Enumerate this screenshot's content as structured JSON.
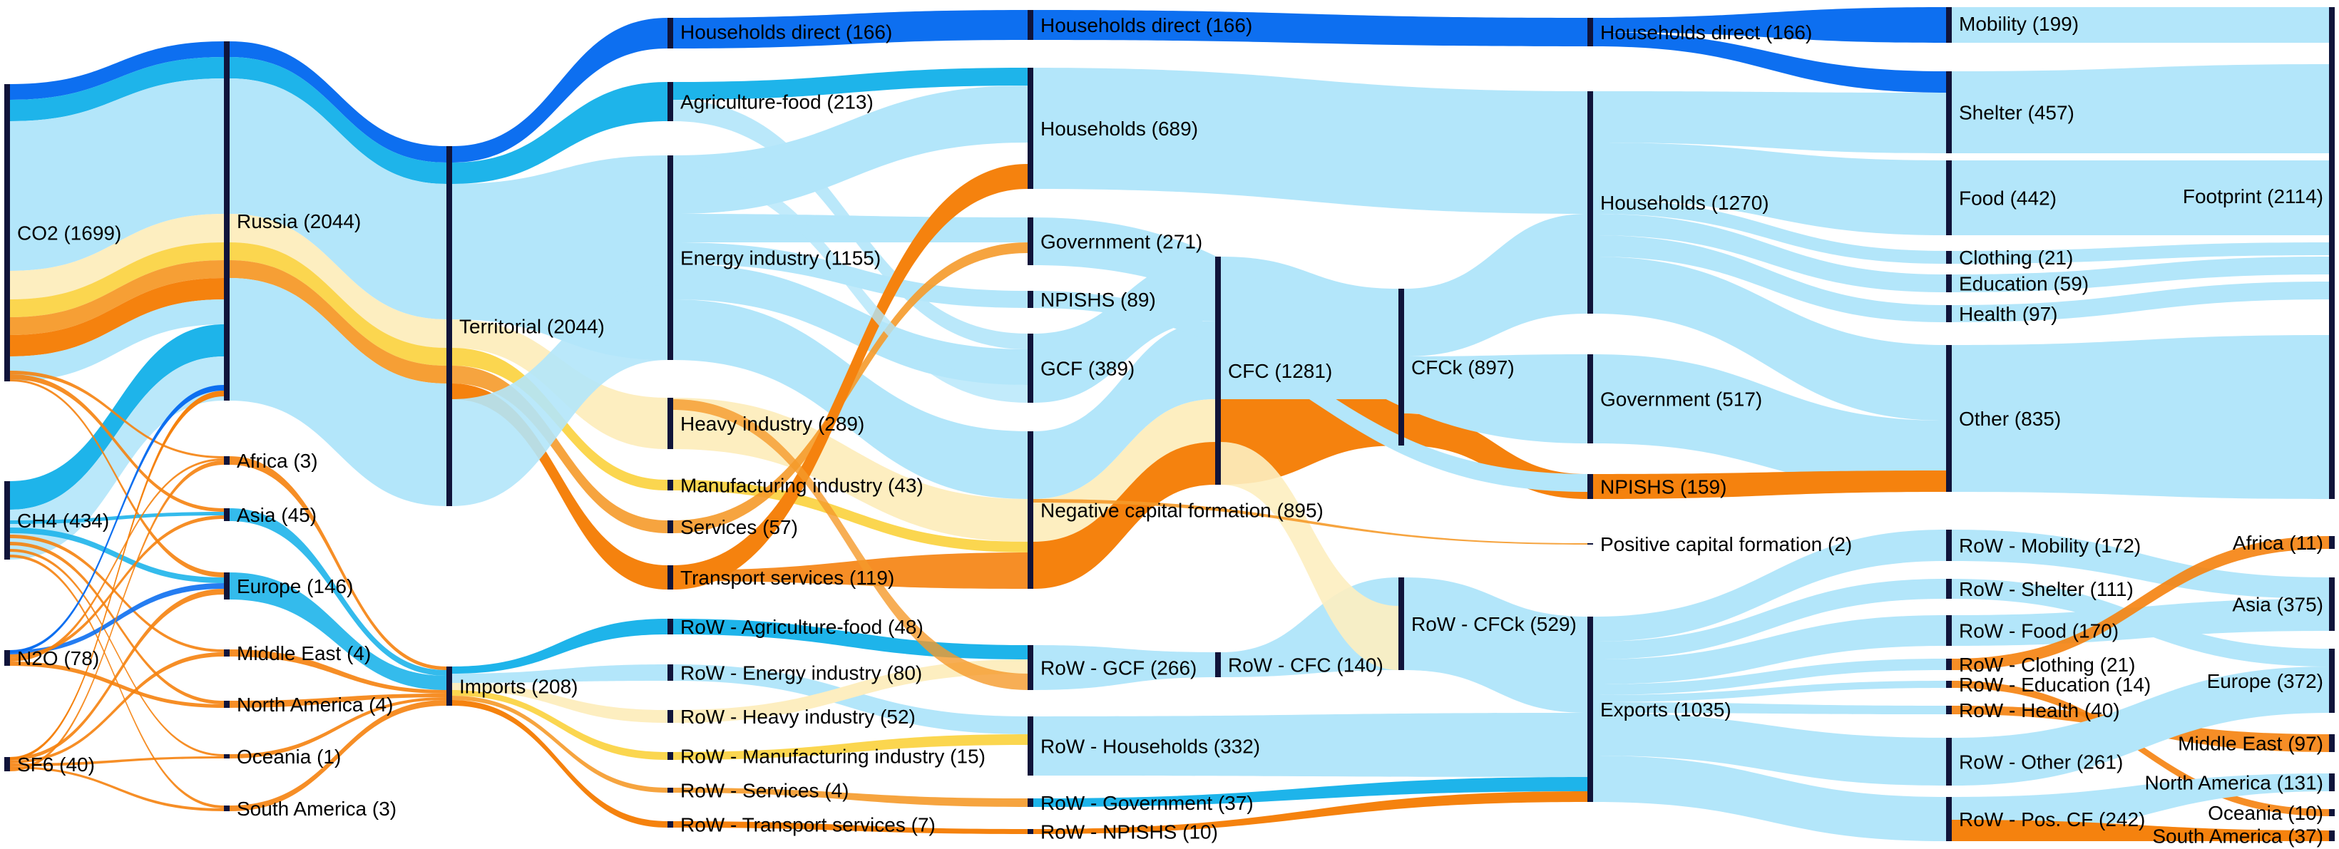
{
  "chart_data": {
    "type": "sankey",
    "colors": {
      "node_bar": "#10143a",
      "flow_co2": "#b3e6fa",
      "flow_ch4": "#1eb4ea",
      "flow_n2o": "#0d6ff0",
      "flow_sf6": "#f5820e",
      "flow_pale": "#fdeec0",
      "flow_yellow": "#fbd23c",
      "flow_orange": "#f59a2a"
    },
    "columns": [
      {
        "nodes": [
          {
            "id": "co2",
            "label": "CO2 (1699)"
          },
          {
            "id": "ch4",
            "label": "CH4 (434)"
          },
          {
            "id": "n2o",
            "label": "N2O (78)"
          },
          {
            "id": "sf6",
            "label": "SF6 (40)"
          }
        ]
      },
      {
        "nodes": [
          {
            "id": "russia",
            "label": "Russia  (2044)"
          },
          {
            "id": "africa_src",
            "label": "Africa  (3)"
          },
          {
            "id": "asia_src",
            "label": "Asia  (45)"
          },
          {
            "id": "europe_src",
            "label": "Europe  (146)"
          },
          {
            "id": "mideast_src",
            "label": "Middle East  (4)"
          },
          {
            "id": "namerica_src",
            "label": "North America  (4)"
          },
          {
            "id": "oceania_src",
            "label": "Oceania  (1)"
          },
          {
            "id": "samerica_src",
            "label": "South America  (3)"
          }
        ]
      },
      {
        "nodes": [
          {
            "id": "territorial",
            "label": "Territorial (2044)"
          },
          {
            "id": "imports",
            "label": "Imports (208)"
          }
        ]
      },
      {
        "nodes": [
          {
            "id": "hh_direct_1",
            "label": "Households direct   (166)"
          },
          {
            "id": "agri",
            "label": "Agriculture-food (213)"
          },
          {
            "id": "energy",
            "label": "Energy industry (1155)"
          },
          {
            "id": "heavy",
            "label": "Heavy industry (289)"
          },
          {
            "id": "manuf",
            "label": "Manufacturing industry (43)"
          },
          {
            "id": "services",
            "label": "Services (57)"
          },
          {
            "id": "transport",
            "label": "Transport services (119)"
          },
          {
            "id": "row_agri",
            "label": "RoW - Agriculture-food (48)"
          },
          {
            "id": "row_energy",
            "label": "RoW - Energy industry (80)"
          },
          {
            "id": "row_heavy",
            "label": "RoW - Heavy industry (52)"
          },
          {
            "id": "row_manuf",
            "label": "RoW - Manufacturing industry (15)"
          },
          {
            "id": "row_services",
            "label": "RoW - Services (4)"
          },
          {
            "id": "row_transport",
            "label": "RoW - Transport services (7)"
          }
        ]
      },
      {
        "nodes": [
          {
            "id": "hh_direct_2",
            "label": "Households direct (166)"
          },
          {
            "id": "households",
            "label": "Households (689)"
          },
          {
            "id": "government",
            "label": "Government (271)"
          },
          {
            "id": "npishs",
            "label": "NPISHS (89)"
          },
          {
            "id": "gcf",
            "label": "GCF (389)"
          },
          {
            "id": "neg_cap",
            "label": "Negative capital formation (895)"
          },
          {
            "id": "row_gcf",
            "label": "RoW - GCF (266)"
          },
          {
            "id": "row_households",
            "label": "RoW - Households (332)"
          },
          {
            "id": "row_government",
            "label": "RoW - Government (37)"
          },
          {
            "id": "row_npishs",
            "label": "RoW - NPISHS (10)"
          }
        ]
      },
      {
        "nodes": [
          {
            "id": "cfc",
            "label": "CFC (1281)"
          },
          {
            "id": "row_cfc",
            "label": "RoW - CFC (140)"
          }
        ]
      },
      {
        "nodes": [
          {
            "id": "cfck",
            "label": "CFCk (897)"
          },
          {
            "id": "row_cfck",
            "label": "RoW - CFCk (529)"
          }
        ]
      },
      {
        "nodes": [
          {
            "id": "hh_direct_3",
            "label": "Households direct  (166)"
          },
          {
            "id": "households_2",
            "label": "Households  (1270)"
          },
          {
            "id": "government_2",
            "label": "Government  (517)"
          },
          {
            "id": "npishs_2",
            "label": "NPISHS  (159)"
          },
          {
            "id": "pos_cap",
            "label": "Positive capital formation  (2)"
          },
          {
            "id": "exports",
            "label": "Exports (1035)"
          }
        ]
      },
      {
        "nodes": [
          {
            "id": "mobility",
            "label": "Mobility (199)"
          },
          {
            "id": "shelter",
            "label": "Shelter (457)"
          },
          {
            "id": "food",
            "label": "Food (442)"
          },
          {
            "id": "clothing",
            "label": "Clothing (21)"
          },
          {
            "id": "education",
            "label": "Education (59)"
          },
          {
            "id": "health",
            "label": "Health (97)"
          },
          {
            "id": "other",
            "label": "Other (835)"
          },
          {
            "id": "row_mobility",
            "label": "RoW - Mobility (172)"
          },
          {
            "id": "row_shelter",
            "label": "RoW - Shelter (111)"
          },
          {
            "id": "row_food",
            "label": "RoW - Food (170)"
          },
          {
            "id": "row_clothing",
            "label": "RoW - Clothing (21)"
          },
          {
            "id": "row_education",
            "label": "RoW - Education (14)"
          },
          {
            "id": "row_health",
            "label": "RoW - Health (40)"
          },
          {
            "id": "row_other",
            "label": "RoW - Other (261)"
          },
          {
            "id": "row_poscf",
            "label": "RoW - Pos. CF (242)"
          }
        ]
      },
      {
        "nodes": [
          {
            "id": "footprint",
            "label": "Footprint (2114)"
          },
          {
            "id": "africa_dst",
            "label": "Africa (11)"
          },
          {
            "id": "asia_dst",
            "label": "Asia (375)"
          },
          {
            "id": "europe_dst",
            "label": "Europe (372)"
          },
          {
            "id": "mideast_dst",
            "label": "Middle East (97)"
          },
          {
            "id": "namerica_dst",
            "label": "North America (131)"
          },
          {
            "id": "oceania_dst",
            "label": "Oceania (10)"
          },
          {
            "id": "samerica_dst",
            "label": "South America (37)"
          }
        ]
      }
    ]
  }
}
